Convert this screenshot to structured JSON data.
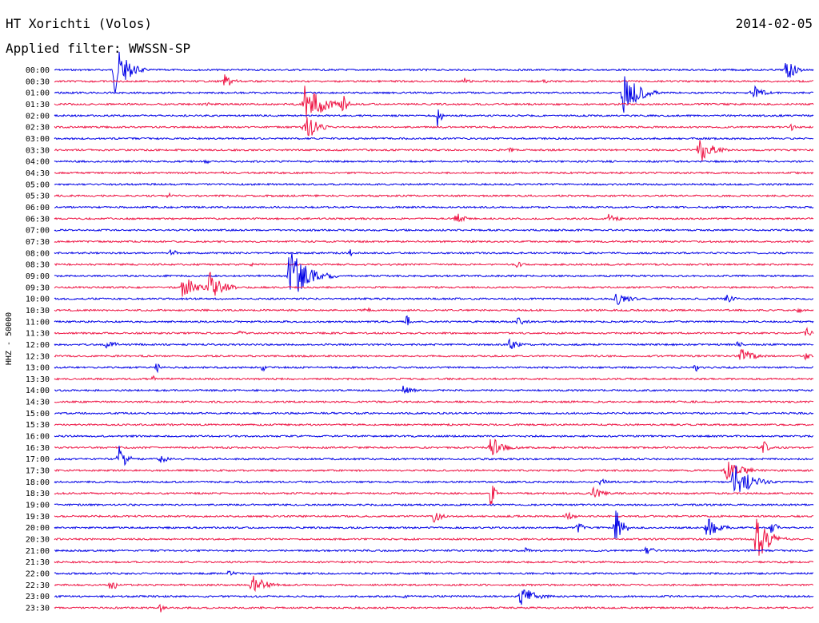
{
  "header": {
    "title": "HT Xorichti (Volos)",
    "date": "2014-02-05",
    "filter": "Applied filter: WWSSN-SP"
  },
  "chart_data": {
    "type": "line",
    "ylabel": "HHZ - 50000",
    "colors": [
      "#0000e6",
      "#ee1444"
    ],
    "rows": [
      {
        "label": "00:00",
        "events": [
          [
            0.08,
            34,
            1.0
          ],
          [
            0.965,
            16,
            0.6
          ]
        ]
      },
      {
        "label": "00:30",
        "events": [
          [
            0.225,
            10,
            0.6
          ],
          [
            0.54,
            5,
            0.4
          ],
          [
            0.645,
            3,
            0.4
          ]
        ]
      },
      {
        "label": "01:00",
        "events": [
          [
            0.75,
            30,
            1.2
          ],
          [
            0.92,
            12,
            0.7
          ]
        ]
      },
      {
        "label": "01:30",
        "events": [
          [
            0.33,
            28,
            1.5
          ],
          [
            0.38,
            14,
            0.3
          ],
          [
            0.2,
            5,
            0.2
          ]
        ]
      },
      {
        "label": "02:00",
        "events": [
          [
            0.505,
            16,
            0.2
          ]
        ]
      },
      {
        "label": "02:30",
        "events": [
          [
            0.33,
            24,
            0.8
          ],
          [
            0.97,
            5,
            0.4
          ]
        ]
      },
      {
        "label": "03:00",
        "events": []
      },
      {
        "label": "03:30",
        "events": [
          [
            0.85,
            18,
            1.0
          ],
          [
            0.6,
            4,
            0.2
          ]
        ]
      },
      {
        "label": "04:00",
        "events": [
          [
            0.2,
            4,
            0.2
          ]
        ]
      },
      {
        "label": "04:30",
        "events": [
          [
            0.22,
            3,
            0.2
          ]
        ]
      },
      {
        "label": "05:00",
        "events": []
      },
      {
        "label": "05:30",
        "events": [
          [
            0.15,
            5,
            0.1
          ]
        ]
      },
      {
        "label": "06:00",
        "events": []
      },
      {
        "label": "06:30",
        "events": [
          [
            0.53,
            8,
            0.8
          ],
          [
            0.73,
            7,
            0.8
          ]
        ]
      },
      {
        "label": "07:00",
        "events": []
      },
      {
        "label": "07:30",
        "events": []
      },
      {
        "label": "08:00",
        "events": [
          [
            0.155,
            10,
            0.2
          ],
          [
            0.39,
            5,
            0.1
          ]
        ]
      },
      {
        "label": "08:30",
        "events": [
          [
            0.61,
            5,
            0.4
          ],
          [
            0.26,
            3,
            0.3
          ]
        ]
      },
      {
        "label": "09:00",
        "events": [
          [
            0.31,
            34,
            1.6
          ]
        ]
      },
      {
        "label": "09:30",
        "events": [
          [
            0.17,
            18,
            1.0
          ],
          [
            0.205,
            20,
            1.0
          ]
        ]
      },
      {
        "label": "10:00",
        "events": [
          [
            0.74,
            10,
            1.0
          ],
          [
            0.885,
            6,
            0.6
          ]
        ]
      },
      {
        "label": "10:30",
        "events": [
          [
            0.41,
            4,
            0.6
          ],
          [
            0.98,
            4,
            0.3
          ]
        ]
      },
      {
        "label": "11:00",
        "events": [
          [
            0.465,
            10,
            0.2
          ],
          [
            0.61,
            6,
            0.7
          ]
        ]
      },
      {
        "label": "11:30",
        "events": [
          [
            0.24,
            5,
            0.5
          ],
          [
            0.99,
            8,
            0.3
          ]
        ]
      },
      {
        "label": "12:00",
        "events": [
          [
            0.07,
            8,
            0.5
          ],
          [
            0.6,
            8,
            0.7
          ],
          [
            0.9,
            5,
            0.4
          ]
        ]
      },
      {
        "label": "12:30",
        "events": [
          [
            0.905,
            10,
            1.1
          ],
          [
            0.99,
            6,
            0.2
          ]
        ]
      },
      {
        "label": "13:00",
        "events": [
          [
            0.135,
            8,
            0.1
          ],
          [
            0.275,
            6,
            0.1
          ],
          [
            0.845,
            6,
            0.1
          ]
        ]
      },
      {
        "label": "13:30",
        "events": [
          [
            0.13,
            5,
            0.1
          ]
        ]
      },
      {
        "label": "14:00",
        "events": [
          [
            0.46,
            7,
            0.7
          ]
        ]
      },
      {
        "label": "14:30",
        "events": []
      },
      {
        "label": "15:00",
        "events": []
      },
      {
        "label": "15:30",
        "events": []
      },
      {
        "label": "16:00",
        "events": []
      },
      {
        "label": "16:30",
        "events": [
          [
            0.575,
            14,
            1.1
          ],
          [
            0.935,
            10,
            0.2
          ]
        ]
      },
      {
        "label": "17:00",
        "events": [
          [
            0.085,
            20,
            0.5
          ],
          [
            0.14,
            5,
            0.7
          ]
        ]
      },
      {
        "label": "17:30",
        "events": [
          [
            0.885,
            14,
            1.4
          ]
        ]
      },
      {
        "label": "18:00",
        "events": [
          [
            0.895,
            24,
            1.4
          ],
          [
            0.72,
            5,
            0.4
          ]
        ]
      },
      {
        "label": "18:30",
        "events": [
          [
            0.575,
            18,
            0.2
          ],
          [
            0.71,
            8,
            0.8
          ]
        ]
      },
      {
        "label": "19:00",
        "events": []
      },
      {
        "label": "19:30",
        "events": [
          [
            0.5,
            10,
            0.6
          ],
          [
            0.675,
            6,
            0.6
          ]
        ]
      },
      {
        "label": "20:00",
        "events": [
          [
            0.74,
            28,
            0.4
          ],
          [
            0.86,
            14,
            1.0
          ],
          [
            0.69,
            8,
            0.3
          ],
          [
            0.945,
            12,
            0.3
          ]
        ]
      },
      {
        "label": "20:30",
        "events": [
          [
            0.925,
            30,
            1.0
          ]
        ]
      },
      {
        "label": "21:00",
        "events": [
          [
            0.78,
            6,
            0.7
          ],
          [
            0.62,
            4,
            0.4
          ],
          [
            0.36,
            3,
            0.2
          ]
        ]
      },
      {
        "label": "21:30",
        "events": []
      },
      {
        "label": "22:00",
        "events": [
          [
            0.23,
            5,
            0.5
          ]
        ]
      },
      {
        "label": "22:30",
        "events": [
          [
            0.075,
            12,
            0.2
          ],
          [
            0.26,
            14,
            1.1
          ]
        ]
      },
      {
        "label": "23:00",
        "events": [
          [
            0.615,
            14,
            1.2
          ],
          [
            0.46,
            4,
            0.2
          ]
        ]
      },
      {
        "label": "23:30",
        "events": [
          [
            0.14,
            6,
            0.2
          ]
        ]
      }
    ]
  }
}
